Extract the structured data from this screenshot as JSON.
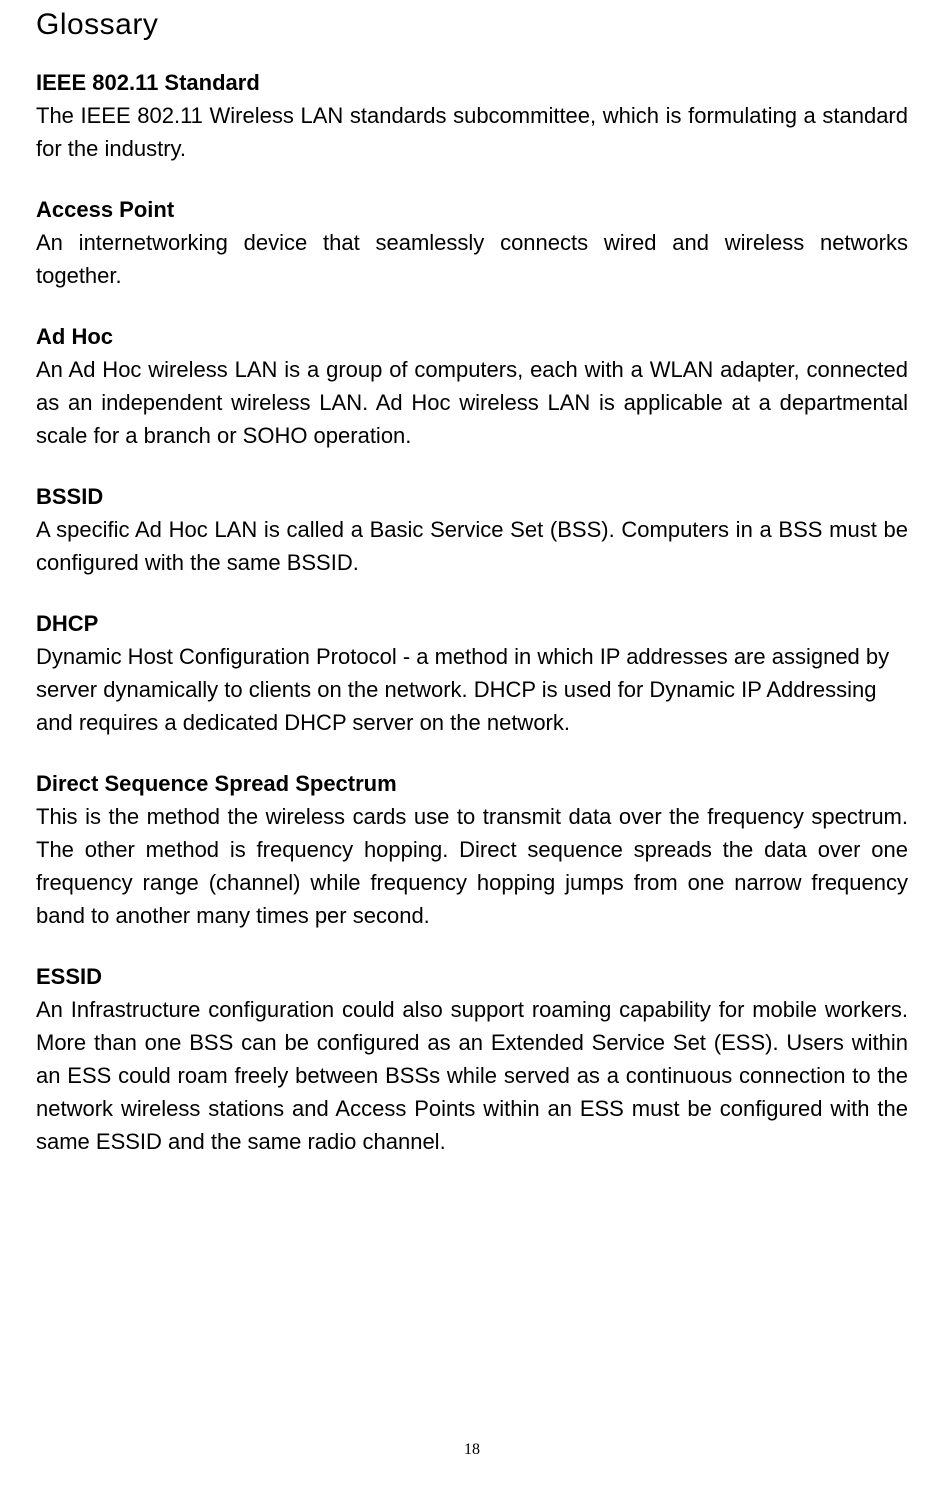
{
  "title": "Glossary",
  "entries": [
    {
      "term": "IEEE 802.11 Standard",
      "definition": "The IEEE 802.11 Wireless LAN standards subcommittee, which is formulating a standard for the industry.",
      "justify": true
    },
    {
      "term": "Access Point",
      "definition": "An internetworking device that seamlessly connects wired and wireless networks together.",
      "justify": true
    },
    {
      "term": "Ad Hoc",
      "definition": "An Ad Hoc wireless LAN is a group of computers, each with a WLAN adapter, connected as an independent wireless LAN. Ad Hoc wireless LAN is applicable at a departmental scale for a branch or SOHO operation.",
      "justify": true
    },
    {
      "term": "BSSID",
      "definition": "A specific Ad Hoc LAN is called a Basic Service Set (BSS). Computers in a BSS must be configured with the same BSSID.",
      "justify": true
    },
    {
      "term": "DHCP",
      "definition": "Dynamic Host Configuration Protocol - a method in which IP addresses are assigned by server dynamically to clients on the network. DHCP is used for Dynamic IP Addressing and requires a dedicated DHCP server on the network.",
      "justify": false
    },
    {
      "term": "Direct Sequence Spread Spectrum",
      "definition": "This is the method the wireless cards use to transmit data over the frequency spectrum. The other method is frequency hopping. Direct sequence spreads the data over one frequency range (channel) while frequency hopping jumps from one narrow frequency band to another many times per second.",
      "justify": true
    },
    {
      "term": "ESSID",
      "definition": "An Infrastructure configuration could also support roaming capability for mobile workers. More than one BSS can be configured as an Extended Service Set (ESS). Users within an ESS could roam freely between BSSs while served as a continuous connection to the network wireless stations and Access Points within an ESS must be configured with the same ESSID and the same radio channel.",
      "justify": true
    }
  ],
  "page_number": "18",
  "colors": {
    "background": "#ffffff",
    "text": "#000000"
  },
  "typography": {
    "title_fontsize": 30,
    "body_fontsize": 22,
    "pagenum_fontsize": 16,
    "font_family": "Arial"
  }
}
